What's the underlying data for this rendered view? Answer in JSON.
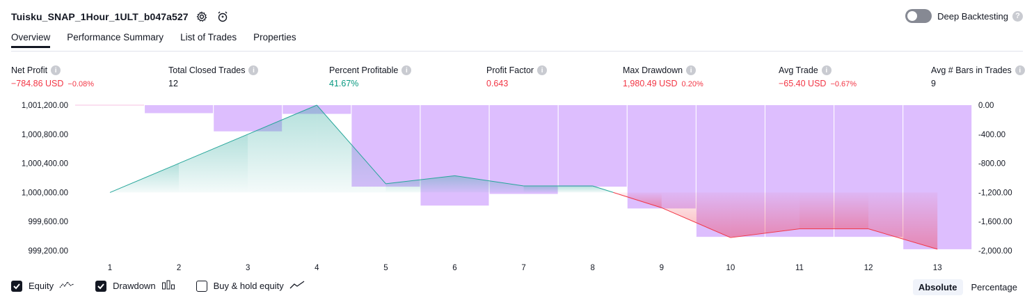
{
  "header": {
    "title": "Tuisku_SNAP_1Hour_1ULT_b047a527",
    "deep_backtesting_label": "Deep Backtesting",
    "deep_backtesting_on": false
  },
  "tabs": [
    {
      "label": "Overview",
      "active": true
    },
    {
      "label": "Performance Summary",
      "active": false
    },
    {
      "label": "List of Trades",
      "active": false
    },
    {
      "label": "Properties",
      "active": false
    }
  ],
  "metrics": [
    {
      "label": "Net Profit",
      "value": "−784.86 USD",
      "pct": "−0.08%",
      "tone": "neg"
    },
    {
      "label": "Total Closed Trades",
      "value": "12",
      "pct": "",
      "tone": "neutral"
    },
    {
      "label": "Percent Profitable",
      "value": "41.67%",
      "pct": "",
      "tone": "pos"
    },
    {
      "label": "Profit Factor",
      "value": "0.643",
      "pct": "",
      "tone": "neg"
    },
    {
      "label": "Max Drawdown",
      "value": "1,980.49 USD",
      "pct": "0.20%",
      "tone": "neg"
    },
    {
      "label": "Avg Trade",
      "value": "−65.40 USD",
      "pct": "−0.67%",
      "tone": "neg"
    },
    {
      "label": "Avg # Bars in Trades",
      "value": "9",
      "pct": "",
      "tone": "neutral"
    }
  ],
  "chart_data": {
    "type": "line",
    "x": [
      1,
      2,
      3,
      4,
      5,
      6,
      7,
      8,
      9,
      10,
      11,
      12,
      13
    ],
    "series": [
      {
        "name": "Equity",
        "axis": "left",
        "values": [
          1000000,
          1000400,
          1000800,
          1001200,
          1000120,
          1000230,
          1000090,
          1000090,
          999790,
          999380,
          999500,
          999500,
          999220
        ]
      },
      {
        "name": "Drawdown",
        "axis": "right",
        "values": [
          0,
          -110,
          -360,
          -120,
          -1120,
          -1380,
          -1220,
          -1120,
          -1420,
          -1810,
          -1810,
          -1810,
          -1980
        ]
      }
    ],
    "left_ticks": [
      "1,001,200.00",
      "1,000,800.00",
      "1,000,400.00",
      "1,000,000.00",
      "999,600.00",
      "999,200.00"
    ],
    "right_ticks": [
      "0.00",
      "-400.00",
      "-800.00",
      "-1,200.00",
      "-1,600.00",
      "-2,000.00"
    ],
    "left_ylim": [
      999200,
      1001200
    ],
    "right_ylim": [
      -2000,
      0
    ],
    "baseline": 1000000,
    "colors": {
      "equity_up": "#26a69a",
      "equity_down": "#f23645",
      "drawdown_bar": "#d1a8fd",
      "grid": "#ffffff"
    }
  },
  "legend": [
    {
      "label": "Equity",
      "checked": true,
      "icon": "equity-wave-icon"
    },
    {
      "label": "Drawdown",
      "checked": true,
      "icon": "drawdown-bars-icon"
    },
    {
      "label": "Buy & hold equity",
      "checked": false,
      "icon": "buy-hold-line-icon"
    }
  ],
  "modes": [
    {
      "label": "Absolute",
      "active": true
    },
    {
      "label": "Percentage",
      "active": false
    }
  ]
}
